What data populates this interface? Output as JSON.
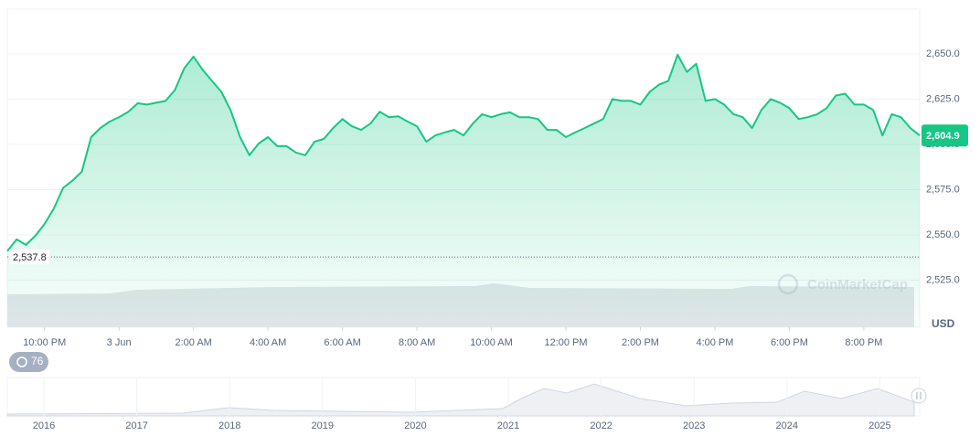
{
  "chart_data": {
    "type": "area",
    "color": "#16c784",
    "x": [
      21,
      21.25,
      21.5,
      21.75,
      22,
      22.25,
      22.5,
      22.75,
      23,
      23.25,
      23.5,
      23.75,
      24,
      24.25,
      24.5,
      24.75,
      25,
      25.25,
      25.5,
      25.75,
      26,
      26.25,
      26.5,
      26.75,
      27,
      27.25,
      27.5,
      27.75,
      28,
      28.25,
      28.5,
      28.75,
      29,
      29.25,
      29.5,
      29.75,
      30,
      30.25,
      30.5,
      30.75,
      31,
      31.25,
      31.5,
      31.75,
      32,
      32.25,
      32.5,
      32.75,
      33,
      33.25,
      33.5,
      33.75,
      34,
      34.25,
      34.5,
      34.75,
      35,
      35.25,
      35.5,
      35.75,
      36,
      36.25,
      36.5,
      36.75,
      37,
      37.25,
      37.5,
      37.75,
      38,
      38.25,
      38.5,
      38.75,
      39,
      39.25,
      39.5,
      39.75,
      40,
      40.25,
      40.5,
      40.75,
      41,
      41.25,
      41.5,
      41.75,
      42,
      42.25,
      42.5,
      42.75,
      43,
      43.25,
      43.5,
      43.75,
      44,
      44.25,
      44.5,
      44.75,
      45,
      45.25,
      45.5
    ],
    "values": [
      2541,
      2547.5,
      2544.5,
      2549.5,
      2556,
      2564.6,
      2576,
      2580,
      2585,
      2604,
      2609,
      2612.6,
      2615,
      2618,
      2622.7,
      2622,
      2623,
      2624,
      2630,
      2642,
      2648.5,
      2641,
      2635,
      2629,
      2618.7,
      2604,
      2594,
      2600.5,
      2604,
      2599,
      2599,
      2595.5,
      2594,
      2601.5,
      2603,
      2609,
      2614,
      2610,
      2608,
      2611.5,
      2618,
      2615,
      2615.5,
      2612.6,
      2610,
      2601.5,
      2605,
      2606.6,
      2608,
      2605,
      2611.5,
      2616.7,
      2615,
      2616.7,
      2617.7,
      2615,
      2615,
      2614,
      2608,
      2608,
      2604,
      2606.6,
      2609,
      2611.5,
      2614,
      2625,
      2624,
      2624,
      2622,
      2629,
      2633,
      2635,
      2649.5,
      2640,
      2644.5,
      2624,
      2625,
      2622,
      2616.7,
      2615,
      2609,
      2619,
      2625,
      2623,
      2620,
      2614,
      2615,
      2616.7,
      2620,
      2627,
      2628,
      2622,
      2622,
      2619,
      2605,
      2616.7,
      2615,
      2609,
      2604.9
    ],
    "xlim": [
      21,
      45.5
    ],
    "xticks": [
      {
        "value": 22,
        "label": "10:00 PM"
      },
      {
        "value": 24,
        "label": "3 Jun"
      },
      {
        "value": 26,
        "label": "2:00 AM"
      },
      {
        "value": 28,
        "label": "4:00 AM"
      },
      {
        "value": 30,
        "label": "6:00 AM"
      },
      {
        "value": 32,
        "label": "8:00 AM"
      },
      {
        "value": 34,
        "label": "10:00 AM"
      },
      {
        "value": 36,
        "label": "12:00 PM"
      },
      {
        "value": 38,
        "label": "2:00 PM"
      },
      {
        "value": 40,
        "label": "4:00 PM"
      },
      {
        "value": 42,
        "label": "6:00 PM"
      },
      {
        "value": 44,
        "label": "8:00 PM"
      }
    ],
    "ylim": [
      2499,
      2674.7
    ],
    "yticks": [
      {
        "value": 2525,
        "label": "2,525.0"
      },
      {
        "value": 2550,
        "label": "2,550.0"
      },
      {
        "value": 2575,
        "label": "2,575.0"
      },
      {
        "value": 2600,
        "label": "2,600.0"
      },
      {
        "value": 2625,
        "label": "2,625.0"
      },
      {
        "value": 2650,
        "label": "2,650.0"
      }
    ],
    "grid": true,
    "currency": "USD",
    "baseline": {
      "value": 2537.8,
      "label": "2,537.8"
    },
    "current_price": {
      "value": 2604.9,
      "label": "2,604.9"
    }
  },
  "navigator": {
    "years": [
      "2016",
      "2017",
      "2018",
      "2019",
      "2020",
      "2021",
      "2022",
      "2023",
      "2024",
      "2025"
    ]
  },
  "badge": "76",
  "watermark": "CoinMarketCap"
}
